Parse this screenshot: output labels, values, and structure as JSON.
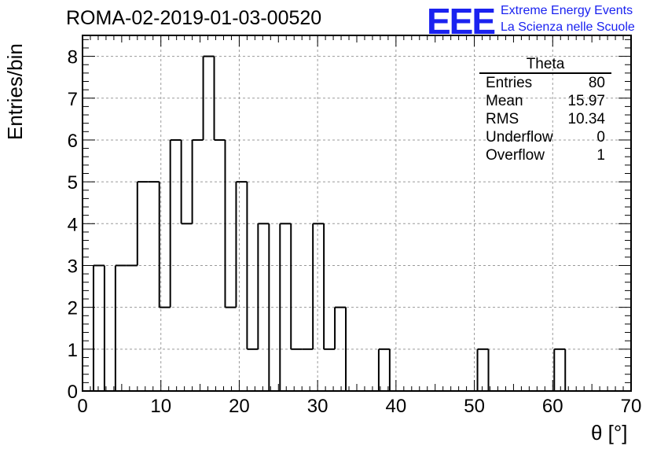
{
  "chart_data": {
    "type": "bar",
    "title": "ROMA-02-2019-01-03-00520",
    "xlabel": "θ [°]",
    "ylabel": "Entries/bin",
    "xlim": [
      0,
      70
    ],
    "ylim": [
      0,
      8.5
    ],
    "x_ticks": [
      0,
      10,
      20,
      30,
      40,
      50,
      60,
      70
    ],
    "y_ticks": [
      0,
      1,
      2,
      3,
      4,
      5,
      6,
      7,
      8
    ],
    "grid": true,
    "bin_width": 1.4,
    "bin_start": 1.4,
    "values": [
      3,
      0,
      3,
      3,
      5,
      5,
      2,
      6,
      4,
      6,
      8,
      6,
      2,
      5,
      1,
      4,
      0,
      4,
      1,
      1,
      4,
      1,
      2,
      0,
      0,
      0,
      1,
      0,
      0,
      0,
      0,
      0,
      0,
      0,
      0,
      1,
      0,
      0,
      0,
      0,
      0,
      0,
      1
    ],
    "stats_box": {
      "title": "Theta",
      "rows": [
        {
          "label": "Entries",
          "value": "80"
        },
        {
          "label": "Mean",
          "value": "15.97"
        },
        {
          "label": "RMS",
          "value": "10.34"
        },
        {
          "label": "Underflow",
          "value": "0"
        },
        {
          "label": "Overflow",
          "value": "1"
        }
      ]
    }
  },
  "logo": {
    "text": "EEE",
    "line1": "Extreme Energy Events",
    "line2": "La Scienza nelle Scuole",
    "color": "#1a22f0"
  }
}
